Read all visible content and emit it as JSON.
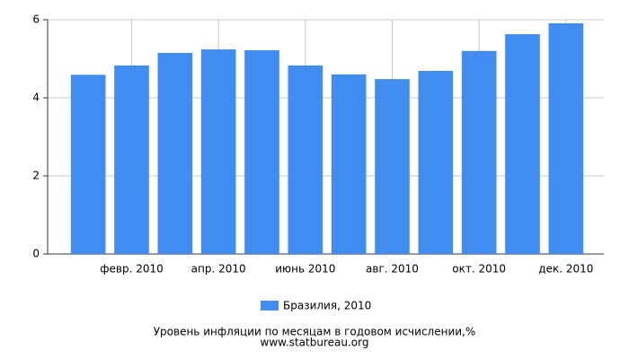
{
  "chart_data": {
    "type": "bar",
    "categories": [
      null,
      "февр. 2010",
      null,
      "апр. 2010",
      null,
      "июнь 2010",
      null,
      "авг. 2010",
      null,
      "окт. 2010",
      null,
      "дек. 2010"
    ],
    "series": [
      {
        "name": "Бразилия, 2010",
        "color": "#418cf0",
        "values": [
          4.59,
          4.83,
          5.15,
          5.24,
          5.22,
          4.83,
          4.6,
          4.48,
          4.69,
          5.2,
          5.63,
          5.91
        ]
      }
    ],
    "ylim": [
      0,
      6
    ],
    "yticks": [
      0,
      2,
      4,
      6
    ],
    "grid": true,
    "xlabel": "Уровень инфляции по месяцам в годовом исчислении,%",
    "source": "www.statbureau.org"
  }
}
